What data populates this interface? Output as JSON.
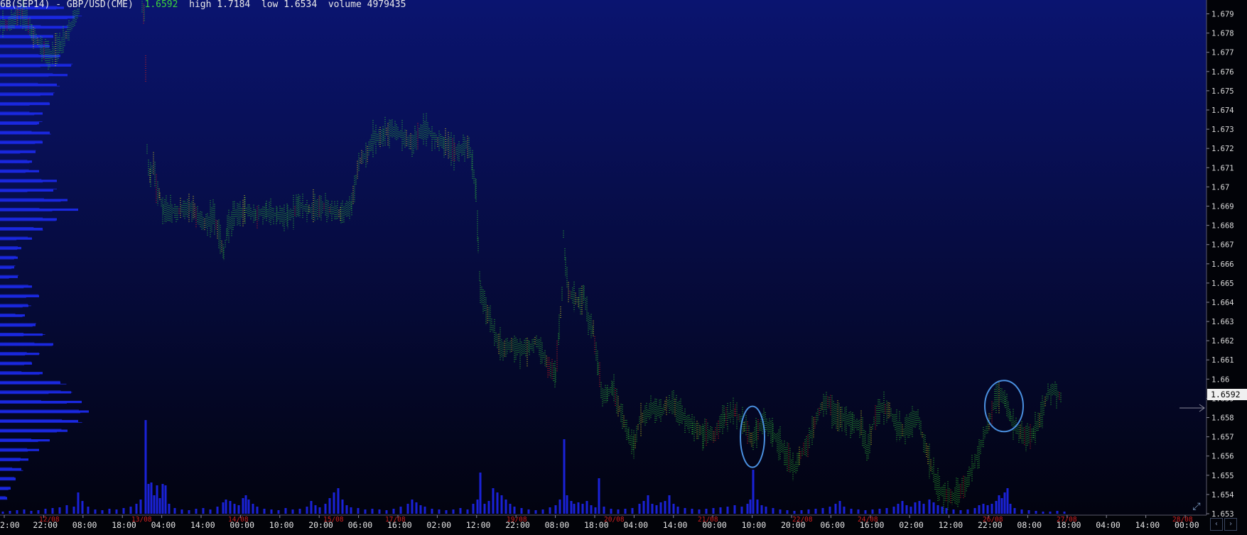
{
  "header": {
    "symbol": "6B(SEP14) - GBP/USD(CME)",
    "last": "1.6592",
    "high_label": "high",
    "high": "1.7184",
    "low_label": "low",
    "low": "1.6534",
    "volume_label": "volume",
    "volume": "4979435"
  },
  "colors": {
    "background_top": "#0a1470",
    "background_bottom": "#02030f",
    "tick_green": "#33cc33",
    "tick_yellow": "#e8e020",
    "tick_red": "#e02020",
    "volume_bar": "#1a22d8",
    "profile_bar": "#1a28e0",
    "circle": "#4a90e0",
    "date_label": "#d02020"
  },
  "chart_data": {
    "type": "tick-chart",
    "y_range": [
      1.653,
      1.6795
    ],
    "y_ticks": [
      "1.679",
      "1.678",
      "1.677",
      "1.676",
      "1.675",
      "1.674",
      "1.673",
      "1.672",
      "1.671",
      "1.67",
      "1.669",
      "1.668",
      "1.667",
      "1.666",
      "1.665",
      "1.664",
      "1.663",
      "1.662",
      "1.661",
      "1.66",
      "1.659",
      "1.658",
      "1.657",
      "1.656",
      "1.655",
      "1.654",
      "1.653"
    ],
    "current_price_label": "1.6592",
    "x_time_labels": [
      "2:00",
      "22:00",
      "08:00",
      "18:00",
      "04:00",
      "14:00",
      "00:00",
      "10:00",
      "20:00",
      "06:00",
      "16:00",
      "02:00",
      "12:00",
      "22:00",
      "08:00",
      "18:00",
      "04:00",
      "14:00",
      "00:00",
      "10:00",
      "20:00",
      "06:00",
      "16:00",
      "02:00",
      "12:00",
      "22:00",
      "08:00",
      "18:00",
      "04:00",
      "14:00",
      "00:00"
    ],
    "x_date_labels": [
      "12/08",
      "13/08",
      "14/08",
      "15/08",
      "17/08",
      "19/08",
      "20/08",
      "21/08",
      "22/08",
      "24/08",
      "26/08",
      "27/08",
      "28/08"
    ],
    "price_path": [
      [
        0,
        1.6785
      ],
      [
        10,
        1.6784
      ],
      [
        20,
        1.6787
      ],
      [
        25,
        1.6791
      ],
      [
        32,
        1.6789
      ],
      [
        45,
        1.678
      ],
      [
        55,
        1.6775
      ],
      [
        62,
        1.677
      ],
      [
        70,
        1.6767
      ],
      [
        78,
        1.6771
      ],
      [
        85,
        1.6774
      ],
      [
        95,
        1.678
      ],
      [
        105,
        1.6787
      ],
      [
        112,
        1.6792
      ],
      [
        200,
        1.6793
      ],
      [
        203,
        1.679
      ],
      [
        205,
        1.676
      ],
      [
        207,
        1.672
      ],
      [
        209,
        1.671
      ],
      [
        212,
        1.6705
      ],
      [
        216,
        1.6712
      ],
      [
        220,
        1.67
      ],
      [
        225,
        1.6695
      ],
      [
        230,
        1.6688
      ],
      [
        240,
        1.6688
      ],
      [
        250,
        1.6687
      ],
      [
        260,
        1.6689
      ],
      [
        272,
        1.6688
      ],
      [
        282,
        1.6683
      ],
      [
        292,
        1.668
      ],
      [
        300,
        1.6686
      ],
      [
        308,
        1.6675
      ],
      [
        315,
        1.6665
      ],
      [
        320,
        1.6678
      ],
      [
        330,
        1.6686
      ],
      [
        345,
        1.6688
      ],
      [
        360,
        1.6685
      ],
      [
        375,
        1.6687
      ],
      [
        390,
        1.6685
      ],
      [
        405,
        1.6684
      ],
      [
        420,
        1.669
      ],
      [
        435,
        1.6688
      ],
      [
        450,
        1.669
      ],
      [
        465,
        1.6688
      ],
      [
        480,
        1.6686
      ],
      [
        495,
        1.669
      ],
      [
        505,
        1.6713
      ],
      [
        515,
        1.6716
      ],
      [
        525,
        1.6725
      ],
      [
        540,
        1.6727
      ],
      [
        550,
        1.673
      ],
      [
        560,
        1.6728
      ],
      [
        570,
        1.6725
      ],
      [
        580,
        1.6722
      ],
      [
        590,
        1.6728
      ],
      [
        600,
        1.673
      ],
      [
        612,
        1.6725
      ],
      [
        625,
        1.6722
      ],
      [
        640,
        1.6718
      ],
      [
        652,
        1.672
      ],
      [
        660,
        1.6722
      ],
      [
        665,
        1.6712
      ],
      [
        670,
        1.6698
      ],
      [
        673,
        1.667
      ],
      [
        676,
        1.6645
      ],
      [
        682,
        1.664
      ],
      [
        690,
        1.663
      ],
      [
        698,
        1.6622
      ],
      [
        708,
        1.6615
      ],
      [
        720,
        1.6618
      ],
      [
        732,
        1.6615
      ],
      [
        745,
        1.6616
      ],
      [
        755,
        1.662
      ],
      [
        765,
        1.6612
      ],
      [
        775,
        1.6605
      ],
      [
        782,
        1.6602
      ],
      [
        787,
        1.6625
      ],
      [
        791,
        1.6645
      ],
      [
        793,
        1.6675
      ],
      [
        796,
        1.666
      ],
      [
        800,
        1.6645
      ],
      [
        808,
        1.6642
      ],
      [
        815,
        1.664
      ],
      [
        822,
        1.6645
      ],
      [
        828,
        1.663
      ],
      [
        835,
        1.6625
      ],
      [
        842,
        1.6605
      ],
      [
        848,
        1.659
      ],
      [
        855,
        1.6592
      ],
      [
        862,
        1.6595
      ],
      [
        870,
        1.6587
      ],
      [
        878,
        1.6578
      ],
      [
        885,
        1.657
      ],
      [
        892,
        1.6565
      ],
      [
        900,
        1.6578
      ],
      [
        910,
        1.6582
      ],
      [
        920,
        1.6585
      ],
      [
        930,
        1.6582
      ],
      [
        940,
        1.6587
      ],
      [
        950,
        1.6585
      ],
      [
        962,
        1.658
      ],
      [
        975,
        1.6575
      ],
      [
        990,
        1.6572
      ],
      [
        1005,
        1.657
      ],
      [
        1020,
        1.658
      ],
      [
        1035,
        1.6583
      ],
      [
        1048,
        1.6575
      ],
      [
        1058,
        1.6568
      ],
      [
        1065,
        1.6572
      ],
      [
        1075,
        1.6578
      ],
      [
        1088,
        1.6572
      ],
      [
        1118,
        1.6553
      ],
      [
        1125,
        1.656
      ],
      [
        1135,
        1.6565
      ],
      [
        1145,
        1.6575
      ],
      [
        1155,
        1.6585
      ],
      [
        1165,
        1.6588
      ],
      [
        1175,
        1.6582
      ],
      [
        1185,
        1.658
      ],
      [
        1200,
        1.6578
      ],
      [
        1212,
        1.6575
      ],
      [
        1220,
        1.6562
      ],
      [
        1230,
        1.6578
      ],
      [
        1240,
        1.6585
      ],
      [
        1252,
        1.6584
      ],
      [
        1262,
        1.6575
      ],
      [
        1272,
        1.6572
      ],
      [
        1282,
        1.6578
      ],
      [
        1292,
        1.658
      ],
      [
        1302,
        1.6565
      ],
      [
        1310,
        1.6555
      ],
      [
        1318,
        1.6545
      ],
      [
        1328,
        1.654
      ],
      [
        1340,
        1.6538
      ],
      [
        1350,
        1.6542
      ],
      [
        1360,
        1.6545
      ],
      [
        1370,
        1.6555
      ],
      [
        1380,
        1.6565
      ],
      [
        1390,
        1.6575
      ],
      [
        1400,
        1.6588
      ],
      [
        1408,
        1.6592
      ],
      [
        1415,
        1.6588
      ],
      [
        1422,
        1.658
      ],
      [
        1432,
        1.6574
      ],
      [
        1442,
        1.657
      ],
      [
        1455,
        1.6572
      ],
      [
        1465,
        1.658
      ],
      [
        1475,
        1.6592
      ],
      [
        1485,
        1.6594
      ],
      [
        1495,
        1.659
      ]
    ],
    "volume_bars": [
      [
        4,
        3
      ],
      [
        14,
        4
      ],
      [
        24,
        5
      ],
      [
        34,
        6
      ],
      [
        44,
        4
      ],
      [
        54,
        5
      ],
      [
        64,
        7
      ],
      [
        74,
        8
      ],
      [
        84,
        9
      ],
      [
        94,
        12
      ],
      [
        104,
        10
      ],
      [
        110,
        30
      ],
      [
        116,
        18
      ],
      [
        124,
        10
      ],
      [
        134,
        6
      ],
      [
        144,
        5
      ],
      [
        154,
        7
      ],
      [
        164,
        6
      ],
      [
        174,
        8
      ],
      [
        184,
        10
      ],
      [
        192,
        14
      ],
      [
        198,
        20
      ],
      [
        205,
        132
      ],
      [
        209,
        42
      ],
      [
        213,
        44
      ],
      [
        217,
        26
      ],
      [
        221,
        40
      ],
      [
        225,
        22
      ],
      [
        229,
        42
      ],
      [
        233,
        40
      ],
      [
        238,
        14
      ],
      [
        246,
        8
      ],
      [
        256,
        6
      ],
      [
        266,
        5
      ],
      [
        276,
        7
      ],
      [
        286,
        8
      ],
      [
        296,
        6
      ],
      [
        306,
        10
      ],
      [
        314,
        16
      ],
      [
        318,
        20
      ],
      [
        324,
        18
      ],
      [
        330,
        14
      ],
      [
        336,
        12
      ],
      [
        342,
        22
      ],
      [
        346,
        26
      ],
      [
        350,
        20
      ],
      [
        356,
        14
      ],
      [
        362,
        10
      ],
      [
        372,
        7
      ],
      [
        382,
        6
      ],
      [
        392,
        5
      ],
      [
        402,
        8
      ],
      [
        412,
        6
      ],
      [
        422,
        7
      ],
      [
        432,
        10
      ],
      [
        438,
        18
      ],
      [
        444,
        12
      ],
      [
        450,
        9
      ],
      [
        458,
        14
      ],
      [
        464,
        22
      ],
      [
        470,
        30
      ],
      [
        476,
        36
      ],
      [
        482,
        20
      ],
      [
        488,
        12
      ],
      [
        494,
        9
      ],
      [
        504,
        8
      ],
      [
        514,
        6
      ],
      [
        524,
        7
      ],
      [
        534,
        6
      ],
      [
        544,
        5
      ],
      [
        554,
        7
      ],
      [
        564,
        10
      ],
      [
        574,
        14
      ],
      [
        580,
        20
      ],
      [
        586,
        16
      ],
      [
        592,
        12
      ],
      [
        598,
        10
      ],
      [
        608,
        7
      ],
      [
        618,
        6
      ],
      [
        628,
        5
      ],
      [
        638,
        6
      ],
      [
        648,
        8
      ],
      [
        658,
        6
      ],
      [
        666,
        14
      ],
      [
        672,
        20
      ],
      [
        676,
        58
      ],
      [
        682,
        14
      ],
      [
        688,
        18
      ],
      [
        694,
        36
      ],
      [
        700,
        30
      ],
      [
        706,
        26
      ],
      [
        712,
        20
      ],
      [
        718,
        14
      ],
      [
        724,
        10
      ],
      [
        734,
        8
      ],
      [
        744,
        6
      ],
      [
        754,
        5
      ],
      [
        764,
        6
      ],
      [
        774,
        9
      ],
      [
        782,
        12
      ],
      [
        788,
        20
      ],
      [
        794,
        105
      ],
      [
        798,
        26
      ],
      [
        804,
        18
      ],
      [
        808,
        14
      ],
      [
        814,
        16
      ],
      [
        820,
        14
      ],
      [
        826,
        18
      ],
      [
        832,
        12
      ],
      [
        838,
        9
      ],
      [
        843,
        50
      ],
      [
        850,
        10
      ],
      [
        860,
        7
      ],
      [
        870,
        6
      ],
      [
        880,
        7
      ],
      [
        890,
        8
      ],
      [
        900,
        14
      ],
      [
        906,
        18
      ],
      [
        912,
        26
      ],
      [
        918,
        14
      ],
      [
        924,
        12
      ],
      [
        930,
        16
      ],
      [
        936,
        18
      ],
      [
        942,
        26
      ],
      [
        948,
        14
      ],
      [
        954,
        10
      ],
      [
        964,
        8
      ],
      [
        974,
        7
      ],
      [
        984,
        6
      ],
      [
        994,
        7
      ],
      [
        1004,
        8
      ],
      [
        1014,
        9
      ],
      [
        1024,
        10
      ],
      [
        1034,
        12
      ],
      [
        1044,
        10
      ],
      [
        1052,
        14
      ],
      [
        1056,
        20
      ],
      [
        1060,
        62
      ],
      [
        1066,
        20
      ],
      [
        1072,
        12
      ],
      [
        1078,
        10
      ],
      [
        1088,
        8
      ],
      [
        1098,
        6
      ],
      [
        1108,
        5
      ],
      [
        1118,
        4
      ],
      [
        1128,
        5
      ],
      [
        1138,
        6
      ],
      [
        1148,
        7
      ],
      [
        1158,
        8
      ],
      [
        1168,
        10
      ],
      [
        1176,
        14
      ],
      [
        1182,
        18
      ],
      [
        1188,
        10
      ],
      [
        1198,
        7
      ],
      [
        1208,
        6
      ],
      [
        1218,
        5
      ],
      [
        1228,
        6
      ],
      [
        1238,
        7
      ],
      [
        1248,
        8
      ],
      [
        1258,
        10
      ],
      [
        1264,
        14
      ],
      [
        1270,
        18
      ],
      [
        1276,
        12
      ],
      [
        1282,
        10
      ],
      [
        1288,
        16
      ],
      [
        1294,
        18
      ],
      [
        1300,
        14
      ],
      [
        1308,
        20
      ],
      [
        1314,
        16
      ],
      [
        1320,
        12
      ],
      [
        1326,
        10
      ],
      [
        1332,
        8
      ],
      [
        1342,
        6
      ],
      [
        1352,
        5
      ],
      [
        1362,
        6
      ],
      [
        1372,
        8
      ],
      [
        1378,
        12
      ],
      [
        1384,
        14
      ],
      [
        1390,
        12
      ],
      [
        1396,
        14
      ],
      [
        1402,
        18
      ],
      [
        1406,
        26
      ],
      [
        1410,
        22
      ],
      [
        1414,
        30
      ],
      [
        1418,
        36
      ],
      [
        1422,
        14
      ],
      [
        1428,
        8
      ],
      [
        1438,
        6
      ],
      [
        1448,
        5
      ],
      [
        1458,
        4
      ],
      [
        1468,
        3
      ],
      [
        1478,
        3
      ],
      [
        1488,
        4
      ],
      [
        1498,
        3
      ]
    ],
    "profile": [
      [
        1.6793,
        90
      ],
      [
        1.6788,
        105
      ],
      [
        1.6783,
        95
      ],
      [
        1.6778,
        75
      ],
      [
        1.6773,
        70
      ],
      [
        1.6768,
        85
      ],
      [
        1.6763,
        100
      ],
      [
        1.6758,
        95
      ],
      [
        1.6753,
        80
      ],
      [
        1.6748,
        75
      ],
      [
        1.6743,
        70
      ],
      [
        1.6738,
        60
      ],
      [
        1.6733,
        55
      ],
      [
        1.6728,
        70
      ],
      [
        1.6723,
        60
      ],
      [
        1.6718,
        50
      ],
      [
        1.6713,
        45
      ],
      [
        1.6708,
        55
      ],
      [
        1.6703,
        80
      ],
      [
        1.6698,
        75
      ],
      [
        1.6693,
        95
      ],
      [
        1.6688,
        110
      ],
      [
        1.6683,
        80
      ],
      [
        1.6678,
        60
      ],
      [
        1.6673,
        45
      ],
      [
        1.6668,
        30
      ],
      [
        1.6663,
        25
      ],
      [
        1.6658,
        20
      ],
      [
        1.6653,
        25
      ],
      [
        1.6648,
        45
      ],
      [
        1.6643,
        55
      ],
      [
        1.6638,
        40
      ],
      [
        1.6633,
        35
      ],
      [
        1.6628,
        50
      ],
      [
        1.6623,
        60
      ],
      [
        1.6618,
        75
      ],
      [
        1.6613,
        55
      ],
      [
        1.6608,
        45
      ],
      [
        1.6603,
        60
      ],
      [
        1.6598,
        85
      ],
      [
        1.6593,
        100
      ],
      [
        1.6588,
        115
      ],
      [
        1.6583,
        125
      ],
      [
        1.6578,
        110
      ],
      [
        1.6573,
        95
      ],
      [
        1.6568,
        70
      ],
      [
        1.6563,
        55
      ],
      [
        1.6558,
        40
      ],
      [
        1.6553,
        30
      ],
      [
        1.6548,
        22
      ],
      [
        1.6543,
        15
      ],
      [
        1.6538,
        10
      ]
    ],
    "annotations": [
      {
        "shape": "ellipse",
        "x": 1059,
        "price": 1.657
      },
      {
        "shape": "ellipse",
        "x": 1413,
        "price": 1.6586
      }
    ]
  }
}
